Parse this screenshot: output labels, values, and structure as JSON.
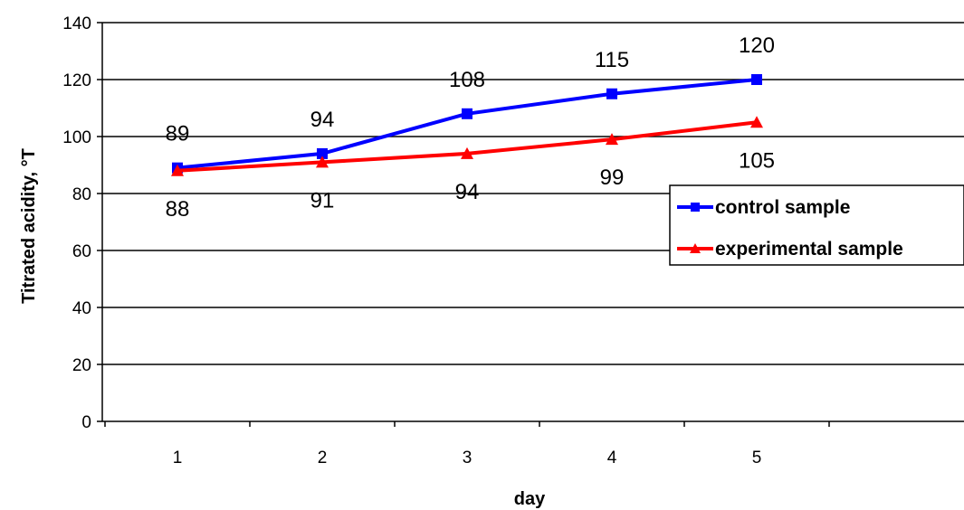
{
  "chart_data": {
    "type": "line",
    "title": "",
    "xlabel": "day",
    "ylabel": "Titrated acidity, °T",
    "categories": [
      "1",
      "2",
      "3",
      "4",
      "5"
    ],
    "ylim": [
      0,
      140
    ],
    "yticks": [
      "0",
      "20",
      "40",
      "60",
      "80",
      "100",
      "120",
      "140"
    ],
    "grid": "horizontal",
    "legend_position": "right",
    "series": [
      {
        "name": "control sample",
        "values": [
          89,
          94,
          108,
          115,
          120
        ],
        "labels": [
          "89",
          "94",
          "108",
          "115",
          "120"
        ],
        "color": "#0000ff",
        "marker": "square"
      },
      {
        "name": "experimental sample",
        "values": [
          88,
          91,
          94,
          99,
          105
        ],
        "labels": [
          "88",
          "91",
          "94",
          "99",
          "105"
        ],
        "color": "#ff0000",
        "marker": "triangle"
      }
    ]
  }
}
